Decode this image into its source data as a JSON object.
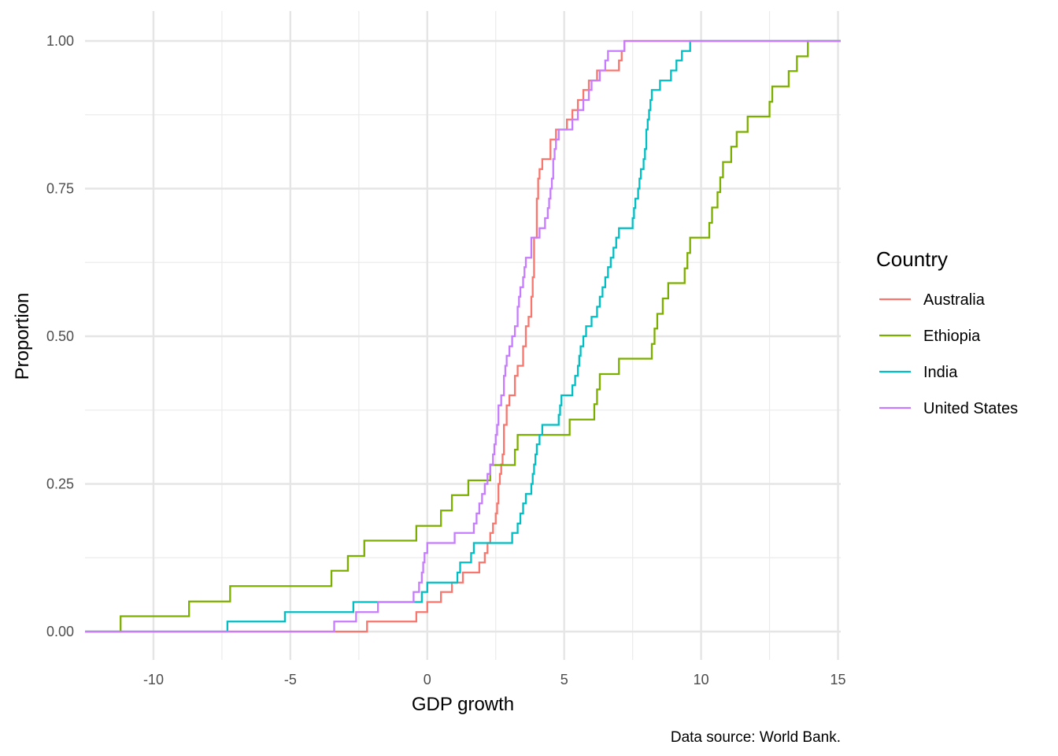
{
  "chart_data": {
    "type": "line",
    "subtype": "step-ecdf",
    "title": "",
    "xlabel": "GDP growth",
    "ylabel": "Proportion",
    "caption": "Data source: World Bank.",
    "xlim": [
      -12.5,
      15.1
    ],
    "ylim": [
      0,
      1
    ],
    "xticks": [
      -10,
      -5,
      0,
      5,
      10,
      15
    ],
    "xtick_labels": [
      "-10",
      "-5",
      "0",
      "5",
      "10",
      "15"
    ],
    "yticks": [
      0,
      0.25,
      0.5,
      0.75,
      1
    ],
    "ytick_labels": [
      "0.00",
      "0.25",
      "0.50",
      "0.75",
      "1.00"
    ],
    "grid": true,
    "legend": {
      "title": "Country",
      "position": "right"
    },
    "series": [
      {
        "name": "Australia",
        "color": "#F8766D",
        "points": [
          [
            -2.2,
            0.017
          ],
          [
            -0.4,
            0.033
          ],
          [
            0.0,
            0.05
          ],
          [
            0.5,
            0.067
          ],
          [
            0.9,
            0.083
          ],
          [
            1.3,
            0.1
          ],
          [
            1.9,
            0.117
          ],
          [
            2.1,
            0.133
          ],
          [
            2.2,
            0.15
          ],
          [
            2.3,
            0.167
          ],
          [
            2.4,
            0.183
          ],
          [
            2.5,
            0.2
          ],
          [
            2.55,
            0.217
          ],
          [
            2.6,
            0.25
          ],
          [
            2.65,
            0.267
          ],
          [
            2.7,
            0.283
          ],
          [
            2.75,
            0.3
          ],
          [
            2.8,
            0.35
          ],
          [
            2.9,
            0.383
          ],
          [
            3.0,
            0.4
          ],
          [
            3.2,
            0.433
          ],
          [
            3.3,
            0.45
          ],
          [
            3.5,
            0.483
          ],
          [
            3.6,
            0.517
          ],
          [
            3.7,
            0.533
          ],
          [
            3.8,
            0.567
          ],
          [
            3.85,
            0.6
          ],
          [
            3.9,
            0.667
          ],
          [
            4.0,
            0.733
          ],
          [
            4.05,
            0.767
          ],
          [
            4.1,
            0.783
          ],
          [
            4.2,
            0.8
          ],
          [
            4.5,
            0.833
          ],
          [
            4.7,
            0.85
          ],
          [
            5.1,
            0.867
          ],
          [
            5.3,
            0.883
          ],
          [
            5.5,
            0.9
          ],
          [
            5.7,
            0.917
          ],
          [
            5.9,
            0.933
          ],
          [
            6.2,
            0.95
          ],
          [
            7.0,
            0.967
          ],
          [
            7.1,
            0.983
          ],
          [
            7.2,
            1.0
          ]
        ]
      },
      {
        "name": "Ethiopia",
        "color": "#7CAE00",
        "points": [
          [
            -11.2,
            0.026
          ],
          [
            -8.7,
            0.051
          ],
          [
            -7.2,
            0.077
          ],
          [
            -3.5,
            0.103
          ],
          [
            -2.9,
            0.128
          ],
          [
            -2.3,
            0.154
          ],
          [
            -0.4,
            0.179
          ],
          [
            0.5,
            0.205
          ],
          [
            0.9,
            0.231
          ],
          [
            1.5,
            0.256
          ],
          [
            2.3,
            0.282
          ],
          [
            3.2,
            0.308
          ],
          [
            3.3,
            0.333
          ],
          [
            5.2,
            0.359
          ],
          [
            6.1,
            0.385
          ],
          [
            6.2,
            0.41
          ],
          [
            6.3,
            0.436
          ],
          [
            7.0,
            0.462
          ],
          [
            8.2,
            0.487
          ],
          [
            8.3,
            0.513
          ],
          [
            8.4,
            0.538
          ],
          [
            8.6,
            0.564
          ],
          [
            8.8,
            0.59
          ],
          [
            9.4,
            0.615
          ],
          [
            9.5,
            0.641
          ],
          [
            9.6,
            0.667
          ],
          [
            10.3,
            0.692
          ],
          [
            10.4,
            0.718
          ],
          [
            10.6,
            0.744
          ],
          [
            10.7,
            0.769
          ],
          [
            10.8,
            0.795
          ],
          [
            11.1,
            0.821
          ],
          [
            11.3,
            0.846
          ],
          [
            11.7,
            0.872
          ],
          [
            12.5,
            0.897
          ],
          [
            12.6,
            0.923
          ],
          [
            13.2,
            0.949
          ],
          [
            13.5,
            0.974
          ],
          [
            13.9,
            1.0
          ]
        ]
      },
      {
        "name": "India",
        "color": "#00BFC4",
        "points": [
          [
            -7.3,
            0.017
          ],
          [
            -5.2,
            0.033
          ],
          [
            -2.7,
            0.05
          ],
          [
            -0.2,
            0.067
          ],
          [
            0.0,
            0.083
          ],
          [
            1.1,
            0.1
          ],
          [
            1.2,
            0.117
          ],
          [
            1.6,
            0.133
          ],
          [
            1.7,
            0.15
          ],
          [
            3.1,
            0.167
          ],
          [
            3.3,
            0.183
          ],
          [
            3.4,
            0.2
          ],
          [
            3.5,
            0.217
          ],
          [
            3.6,
            0.233
          ],
          [
            3.8,
            0.25
          ],
          [
            3.85,
            0.267
          ],
          [
            3.9,
            0.283
          ],
          [
            3.95,
            0.3
          ],
          [
            4.0,
            0.317
          ],
          [
            4.1,
            0.333
          ],
          [
            4.2,
            0.35
          ],
          [
            4.8,
            0.367
          ],
          [
            4.85,
            0.383
          ],
          [
            4.9,
            0.4
          ],
          [
            5.3,
            0.417
          ],
          [
            5.4,
            0.433
          ],
          [
            5.5,
            0.45
          ],
          [
            5.55,
            0.467
          ],
          [
            5.6,
            0.483
          ],
          [
            5.7,
            0.5
          ],
          [
            5.8,
            0.517
          ],
          [
            6.0,
            0.533
          ],
          [
            6.2,
            0.55
          ],
          [
            6.3,
            0.567
          ],
          [
            6.4,
            0.583
          ],
          [
            6.5,
            0.6
          ],
          [
            6.6,
            0.617
          ],
          [
            6.7,
            0.633
          ],
          [
            6.8,
            0.65
          ],
          [
            6.9,
            0.667
          ],
          [
            7.0,
            0.683
          ],
          [
            7.5,
            0.7
          ],
          [
            7.55,
            0.717
          ],
          [
            7.6,
            0.733
          ],
          [
            7.7,
            0.75
          ],
          [
            7.75,
            0.767
          ],
          [
            7.8,
            0.783
          ],
          [
            7.9,
            0.8
          ],
          [
            7.95,
            0.817
          ],
          [
            8.0,
            0.85
          ],
          [
            8.05,
            0.867
          ],
          [
            8.1,
            0.883
          ],
          [
            8.15,
            0.9
          ],
          [
            8.2,
            0.917
          ],
          [
            8.5,
            0.933
          ],
          [
            8.9,
            0.95
          ],
          [
            9.1,
            0.967
          ],
          [
            9.3,
            0.983
          ],
          [
            9.6,
            1.0
          ]
        ]
      },
      {
        "name": "United States",
        "color": "#C77CFF",
        "points": [
          [
            -3.4,
            0.017
          ],
          [
            -2.6,
            0.033
          ],
          [
            -1.8,
            0.05
          ],
          [
            -0.5,
            0.067
          ],
          [
            -0.3,
            0.083
          ],
          [
            -0.2,
            0.1
          ],
          [
            -0.15,
            0.117
          ],
          [
            -0.1,
            0.133
          ],
          [
            0.0,
            0.15
          ],
          [
            1.0,
            0.167
          ],
          [
            1.7,
            0.183
          ],
          [
            1.8,
            0.2
          ],
          [
            1.9,
            0.217
          ],
          [
            2.0,
            0.233
          ],
          [
            2.1,
            0.25
          ],
          [
            2.2,
            0.267
          ],
          [
            2.3,
            0.283
          ],
          [
            2.4,
            0.3
          ],
          [
            2.45,
            0.317
          ],
          [
            2.5,
            0.333
          ],
          [
            2.55,
            0.35
          ],
          [
            2.6,
            0.383
          ],
          [
            2.7,
            0.4
          ],
          [
            2.8,
            0.433
          ],
          [
            2.85,
            0.45
          ],
          [
            2.9,
            0.467
          ],
          [
            3.0,
            0.483
          ],
          [
            3.1,
            0.5
          ],
          [
            3.2,
            0.517
          ],
          [
            3.3,
            0.55
          ],
          [
            3.35,
            0.567
          ],
          [
            3.4,
            0.583
          ],
          [
            3.5,
            0.6
          ],
          [
            3.55,
            0.617
          ],
          [
            3.6,
            0.633
          ],
          [
            3.8,
            0.667
          ],
          [
            4.1,
            0.683
          ],
          [
            4.3,
            0.7
          ],
          [
            4.4,
            0.717
          ],
          [
            4.45,
            0.733
          ],
          [
            4.5,
            0.75
          ],
          [
            4.55,
            0.767
          ],
          [
            4.6,
            0.8
          ],
          [
            4.65,
            0.817
          ],
          [
            4.7,
            0.833
          ],
          [
            4.8,
            0.85
          ],
          [
            5.3,
            0.867
          ],
          [
            5.5,
            0.883
          ],
          [
            5.7,
            0.9
          ],
          [
            5.9,
            0.917
          ],
          [
            6.0,
            0.933
          ],
          [
            6.3,
            0.95
          ],
          [
            6.5,
            0.967
          ],
          [
            6.6,
            0.983
          ],
          [
            7.2,
            1.0
          ]
        ]
      }
    ]
  }
}
